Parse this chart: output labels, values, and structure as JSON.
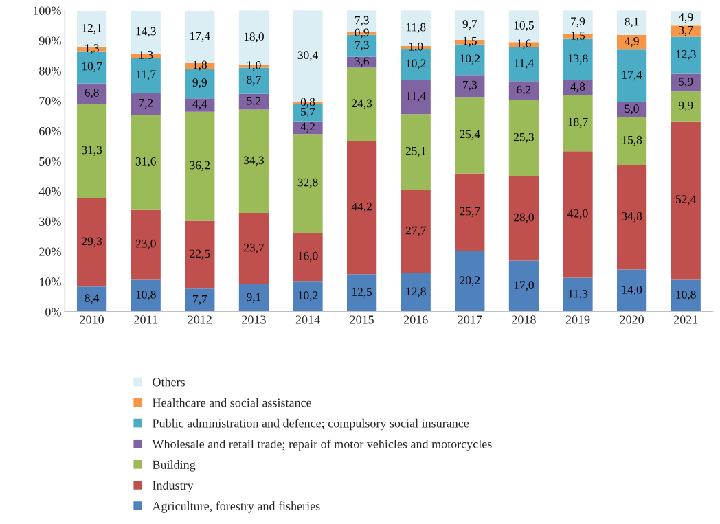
{
  "chart_data": {
    "type": "bar",
    "stacked": true,
    "categories": [
      "2010",
      "2011",
      "2012",
      "2013",
      "2014",
      "2015",
      "2016",
      "2017",
      "2018",
      "2019",
      "2020",
      "2021"
    ],
    "series": [
      {
        "name": "Agriculture, forestry and fisheries",
        "color": "#4f81bd",
        "values": [
          8.4,
          10.8,
          7.7,
          9.1,
          10.2,
          12.5,
          12.8,
          20.2,
          17.0,
          11.3,
          14.0,
          10.8
        ],
        "value_labels": [
          "8,4",
          "10,8",
          "7,7",
          "9,1",
          "10,2",
          "12,5",
          "12,8",
          "20,2",
          "17,0",
          "11,3",
          "14,0",
          "10,8"
        ]
      },
      {
        "name": "Industry",
        "color": "#c0504d",
        "values": [
          29.3,
          23.0,
          22.5,
          23.7,
          16.0,
          44.2,
          27.7,
          25.7,
          28.0,
          42.0,
          34.8,
          52.4
        ],
        "value_labels": [
          "29,3",
          "23,0",
          "22,5",
          "23,7",
          "16,0",
          "44,2",
          "27,7",
          "25,7",
          "28,0",
          "42,0",
          "34,8",
          "52,4"
        ]
      },
      {
        "name": "Building",
        "color": "#9bbb59",
        "values": [
          31.3,
          31.6,
          36.2,
          34.3,
          32.8,
          24.3,
          25.1,
          25.4,
          25.3,
          18.7,
          15.8,
          9.9
        ],
        "value_labels": [
          "31,3",
          "31,6",
          "36,2",
          "34,3",
          "32,8",
          "24,3",
          "25,1",
          "25,4",
          "25,3",
          "18,7",
          "15,8",
          "9,9"
        ]
      },
      {
        "name": "Wholesale and retail trade; repair of motor vehicles and motorcycles",
        "color": "#8064a2",
        "values": [
          6.8,
          7.2,
          4.4,
          5.2,
          4.2,
          3.6,
          11.4,
          7.3,
          6.2,
          4.8,
          5.0,
          5.9
        ],
        "value_labels": [
          "6,8",
          "7,2",
          "4,4",
          "5,2",
          "4,2",
          "3,6",
          "11,4",
          "7,3",
          "6,2",
          "4,8",
          "5,0",
          "5,9"
        ]
      },
      {
        "name": "Public administration and defence; compulsory social insurance",
        "color": "#4bacc6",
        "values": [
          10.7,
          11.7,
          9.9,
          8.7,
          5.7,
          7.3,
          10.2,
          10.2,
          11.4,
          13.8,
          17.4,
          12.3
        ],
        "value_labels": [
          "10,7",
          "11,7",
          "9,9",
          "8,7",
          "5,7",
          "7,3",
          "10,2",
          "10,2",
          "11,4",
          "13,8",
          "17,4",
          "12,3"
        ]
      },
      {
        "name": "Healthcare and social assistance",
        "color": "#f79646",
        "values": [
          1.3,
          1.3,
          1.8,
          1.0,
          0.8,
          0.9,
          1.0,
          1.5,
          1.6,
          1.5,
          4.9,
          3.7
        ],
        "value_labels": [
          "1,3",
          "1,3",
          "1,8",
          "1,0",
          "0,8",
          "0,9",
          "1,0",
          "1,5",
          "1,6",
          "1,5",
          "4,9",
          "3,7"
        ]
      },
      {
        "name": "Others",
        "color": "#dbeef4",
        "values": [
          12.1,
          14.3,
          17.4,
          18.0,
          30.4,
          7.3,
          11.8,
          9.7,
          10.5,
          7.9,
          8.1,
          4.9
        ],
        "value_labels": [
          "12,1",
          "14,3",
          "17,4",
          "18,0",
          "30,4",
          "7,3",
          "11,8",
          "9,7",
          "10,5",
          "7,9",
          "8,1",
          "4,9"
        ]
      }
    ],
    "ylim": [
      0,
      100
    ],
    "yticks": [
      {
        "value": 0,
        "label": "0%"
      },
      {
        "value": 10,
        "label": "10%"
      },
      {
        "value": 20,
        "label": "20%"
      },
      {
        "value": 30,
        "label": "30%"
      },
      {
        "value": 40,
        "label": "40%"
      },
      {
        "value": 50,
        "label": "50%"
      },
      {
        "value": 60,
        "label": "60%"
      },
      {
        "value": 70,
        "label": "70%"
      },
      {
        "value": 80,
        "label": "80%"
      },
      {
        "value": 90,
        "label": "90%"
      },
      {
        "value": 100,
        "label": "100%"
      }
    ],
    "legend": "bottom",
    "grid": false
  }
}
